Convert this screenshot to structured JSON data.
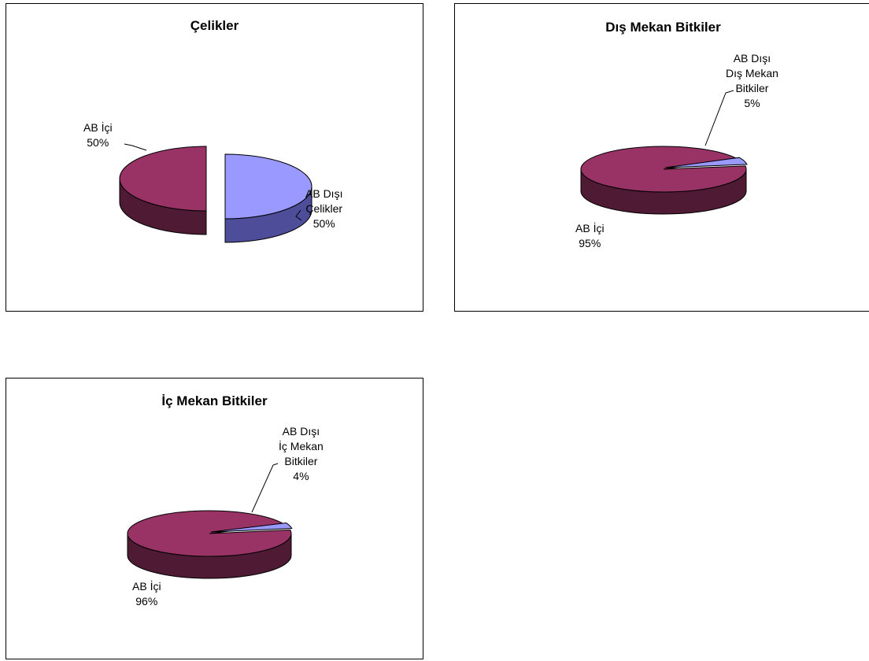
{
  "colors": {
    "ab_ici_top": "#993366",
    "ab_ici_side": "#4f1a33",
    "ab_disi_top": "#9999ff",
    "ab_disi_side": "#4d4d99",
    "outline": "#000000"
  },
  "chart_data": [
    {
      "type": "pie",
      "title": "Çelikler",
      "slices": [
        {
          "label_lines": [
            "AB İçi",
            "50%"
          ],
          "value": 50
        },
        {
          "label_lines": [
            "AB Dışı",
            "Çelikler",
            "50%"
          ],
          "value": 50
        }
      ]
    },
    {
      "type": "pie",
      "title": "Dış Mekan Bitkiler",
      "slices": [
        {
          "label_lines": [
            "AB İçi",
            "95%"
          ],
          "value": 95
        },
        {
          "label_lines": [
            "AB Dışı",
            "Dış Mekan",
            "Bitkiler",
            "5%"
          ],
          "value": 5
        }
      ]
    },
    {
      "type": "pie",
      "title": "İç Mekan Bitkiler",
      "slices": [
        {
          "label_lines": [
            "AB İçi",
            "96%"
          ],
          "value": 96
        },
        {
          "label_lines": [
            "AB Dışı",
            "İç Mekan",
            "Bitkiler",
            "4%"
          ],
          "value": 4
        }
      ]
    }
  ]
}
